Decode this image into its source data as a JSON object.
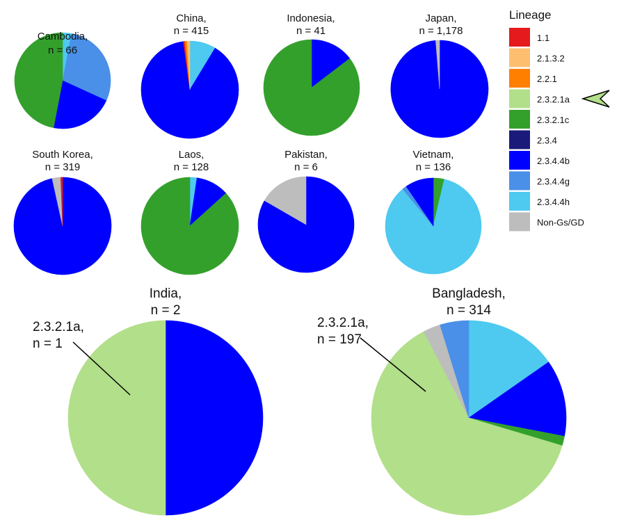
{
  "legend": {
    "title": "Lineage",
    "items": [
      {
        "label": "1.1",
        "color": "#e41a1c"
      },
      {
        "label": "2.1.3.2",
        "color": "#fdbf6f"
      },
      {
        "label": "2.2.1",
        "color": "#ff7f00"
      },
      {
        "label": "2.3.2.1a",
        "color": "#b2df8a",
        "highlighted": true
      },
      {
        "label": "2.3.2.1c",
        "color": "#33a02c"
      },
      {
        "label": "2.3.4",
        "color": "#1a1a7a"
      },
      {
        "label": "2.3.4.4b",
        "color": "#0000ff"
      },
      {
        "label": "2.3.4.4g",
        "color": "#4a90e8"
      },
      {
        "label": "2.3.4.4h",
        "color": "#4ec9f0"
      },
      {
        "label": "Non-Gs/GD",
        "color": "#bdbdbd"
      }
    ],
    "highlight_marker": "arrowhead-icon"
  },
  "chart_data": [
    {
      "type": "pie",
      "title": [
        "Cambodia,",
        "n = 66"
      ],
      "slices": [
        {
          "lineage": "2.3.4.4h",
          "value": 2
        },
        {
          "lineage": "2.3.4.4g",
          "value": 19
        },
        {
          "lineage": "2.3.4.4b",
          "value": 14
        },
        {
          "lineage": "2.3.2.1c",
          "value": 31
        }
      ]
    },
    {
      "type": "pie",
      "title": [
        "China,",
        "n = 415"
      ],
      "slices": [
        {
          "lineage": "2.3.4.4h",
          "value": 36
        },
        {
          "lineage": "2.3.4.4b",
          "value": 60
        },
        {
          "lineage": "2.3.4.4b",
          "value": 70
        },
        {
          "lineage": "2.3.4.4b",
          "value": 240
        },
        {
          "lineage": "1.1",
          "value": 2
        },
        {
          "lineage": "2.2.1",
          "value": 3
        },
        {
          "lineage": "2.1.3.2",
          "value": 4
        }
      ]
    },
    {
      "type": "pie",
      "title": [
        "Indonesia,",
        "n = 41"
      ],
      "slices": [
        {
          "lineage": "2.3.4.4b",
          "value": 6
        },
        {
          "lineage": "2.3.2.1c",
          "value": 35
        }
      ]
    },
    {
      "type": "pie",
      "title": [
        "Japan,",
        "n = 1,178"
      ],
      "slices": [
        {
          "lineage": "2.3.4.4b",
          "value": 580
        },
        {
          "lineage": "2.3.4.4b",
          "value": 583
        },
        {
          "lineage": "Non-Gs/GD",
          "value": 15
        }
      ]
    },
    {
      "type": "pie",
      "title": [
        "South Korea,",
        "n = 319"
      ],
      "slices": [
        {
          "lineage": "2.3.4.4b",
          "value": 308
        },
        {
          "lineage": "Non-Gs/GD",
          "value": 9
        },
        {
          "lineage": "1.1",
          "value": 2
        }
      ]
    },
    {
      "type": "pie",
      "title": [
        "Laos,",
        "n = 128"
      ],
      "slices": [
        {
          "lineage": "2.3.4.4h",
          "value": 3
        },
        {
          "lineage": "2.3.4.4b",
          "value": 14
        },
        {
          "lineage": "2.3.2.1c",
          "value": 111
        }
      ]
    },
    {
      "type": "pie",
      "title": [
        "Pakistan,",
        "n = 6"
      ],
      "slices": [
        {
          "lineage": "2.3.4.4b",
          "value": 5
        },
        {
          "lineage": "Non-Gs/GD",
          "value": 1
        }
      ]
    },
    {
      "type": "pie",
      "title": [
        "Vietnam,",
        "n = 136"
      ],
      "slices": [
        {
          "lineage": "2.3.2.1c",
          "value": 5
        },
        {
          "lineage": "2.3.4.4h",
          "value": 116
        },
        {
          "lineage": "2.3.4.4g",
          "value": 2
        },
        {
          "lineage": "2.3.4.4b",
          "value": 13
        }
      ]
    },
    {
      "type": "pie",
      "title": [
        "India,",
        "n = 2"
      ],
      "slices": [
        {
          "lineage": "2.3.4.4b",
          "value": 1
        },
        {
          "lineage": "2.3.2.1a",
          "value": 1
        }
      ],
      "annotation": [
        "2.3.2.1a,",
        "n = 1"
      ]
    },
    {
      "type": "pie",
      "title": [
        "Bangladesh,",
        "n = 314"
      ],
      "slices": [
        {
          "lineage": "2.3.4.4h",
          "value": 48
        },
        {
          "lineage": "2.3.4.4b",
          "value": 40
        },
        {
          "lineage": "2.3.2.1c",
          "value": 5
        },
        {
          "lineage": "2.3.2.1a",
          "value": 197
        },
        {
          "lineage": "Non-Gs/GD",
          "value": 9
        },
        {
          "lineage": "2.3.4.4g",
          "value": 15
        }
      ],
      "annotation": [
        "2.3.2.1a,",
        "n = 197"
      ]
    }
  ]
}
